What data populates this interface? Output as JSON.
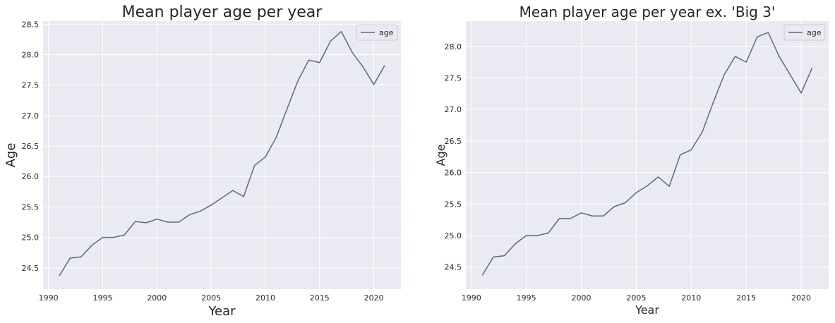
{
  "colors": {
    "background": "#eaeaf2",
    "grid": "#ffffff",
    "line": "#5f6880",
    "text": "#262626"
  },
  "chart_data": [
    {
      "type": "line",
      "title": "Mean player age per year",
      "xlabel": "Year",
      "ylabel": "Age",
      "xlim": [
        1989.5,
        2022.5
      ],
      "ylim": [
        24.15,
        28.55
      ],
      "xticks": [
        1990,
        1995,
        2000,
        2005,
        2010,
        2015,
        2020
      ],
      "yticks": [
        24.5,
        25.0,
        25.5,
        26.0,
        26.5,
        27.0,
        27.5,
        28.0,
        28.5
      ],
      "legend": "top-right",
      "grid": true,
      "series": [
        {
          "name": "age",
          "x": [
            1991,
            1992,
            1993,
            1994,
            1995,
            1996,
            1997,
            1998,
            1999,
            2000,
            2001,
            2002,
            2003,
            2004,
            2005,
            2006,
            2007,
            2008,
            2009,
            2010,
            2011,
            2012,
            2013,
            2014,
            2015,
            2016,
            2017,
            2018,
            2019,
            2020,
            2021
          ],
          "y": [
            24.37,
            24.66,
            24.68,
            24.87,
            25.0,
            25.0,
            25.04,
            25.26,
            25.24,
            25.3,
            25.25,
            25.25,
            25.37,
            25.43,
            25.53,
            25.65,
            25.77,
            25.67,
            26.18,
            26.32,
            26.64,
            27.11,
            27.57,
            27.91,
            27.87,
            28.22,
            28.38,
            28.04,
            27.8,
            27.51,
            27.82
          ]
        }
      ]
    },
    {
      "type": "line",
      "title": "Mean player age per year ex. 'Big 3'",
      "xlabel": "Year",
      "ylabel": "Age",
      "xlim": [
        1989.5,
        2022.5
      ],
      "ylim": [
        24.15,
        28.4
      ],
      "xticks": [
        1990,
        1995,
        2000,
        2005,
        2010,
        2015,
        2020
      ],
      "yticks": [
        24.5,
        25.0,
        25.5,
        26.0,
        26.5,
        27.0,
        27.5,
        28.0
      ],
      "legend": "top-right",
      "grid": true,
      "series": [
        {
          "name": "age",
          "x": [
            1991,
            1992,
            1993,
            1994,
            1995,
            1996,
            1997,
            1998,
            1999,
            2000,
            2001,
            2002,
            2003,
            2004,
            2005,
            2006,
            2007,
            2008,
            2009,
            2010,
            2011,
            2012,
            2013,
            2014,
            2015,
            2016,
            2017,
            2018,
            2019,
            2020,
            2021
          ],
          "y": [
            24.37,
            24.66,
            24.68,
            24.87,
            25.0,
            25.0,
            25.04,
            25.27,
            25.27,
            25.36,
            25.31,
            25.31,
            25.46,
            25.52,
            25.68,
            25.79,
            25.93,
            25.78,
            26.28,
            26.36,
            26.64,
            27.11,
            27.55,
            27.84,
            27.75,
            28.15,
            28.22,
            27.84,
            27.55,
            27.26,
            27.66
          ]
        }
      ]
    }
  ]
}
